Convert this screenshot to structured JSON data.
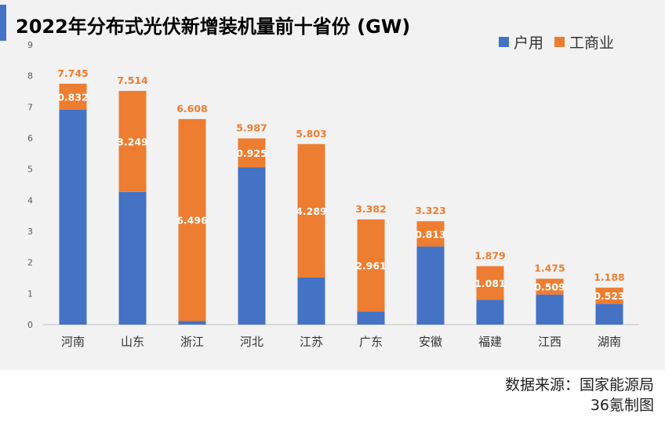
{
  "title": "2022年分布式光伏新增装机量前十省份 (GW)",
  "colors": {
    "household": "#4472c4",
    "commercial": "#ed7d31",
    "accent": "#4472c4",
    "total_label": "#ed7d31"
  },
  "chart_data": {
    "type": "bar",
    "stacked": true,
    "categories": [
      "河南",
      "山东",
      "浙江",
      "河北",
      "江苏",
      "广东",
      "安徽",
      "福建",
      "江西",
      "湖南"
    ],
    "series": [
      {
        "name": "户用",
        "values": [
          6.913,
          4.265,
          0.112,
          5.062,
          1.514,
          0.421,
          2.51,
          0.798,
          0.966,
          0.665
        ]
      },
      {
        "name": "工商业",
        "values": [
          0.832,
          3.249,
          6.496,
          0.925,
          4.289,
          2.961,
          0.813,
          1.081,
          0.509,
          0.523
        ]
      }
    ],
    "totals": [
      7.745,
      7.514,
      6.608,
      5.987,
      5.803,
      3.382,
      3.323,
      1.879,
      1.475,
      1.188
    ],
    "total_labels": [
      "7.745",
      "7.514",
      "6.608",
      "5.987",
      "5.803",
      "3.382",
      "3.323",
      "1.879",
      "1.475",
      "1.188"
    ],
    "commercial_labels": [
      "0.832",
      "3.249",
      "6.496",
      "0.925",
      "4.289",
      "2.961",
      "0.813",
      "1.081",
      "0.509",
      "0.523"
    ],
    "ylim": [
      0,
      9
    ],
    "yticks": [
      "0",
      "1",
      "2",
      "3",
      "4",
      "5",
      "6",
      "7",
      "8",
      "9"
    ],
    "legend_position": "top-right",
    "grid": false
  },
  "footer": {
    "source": "数据来源：国家能源局",
    "credit": "36氪制图"
  }
}
